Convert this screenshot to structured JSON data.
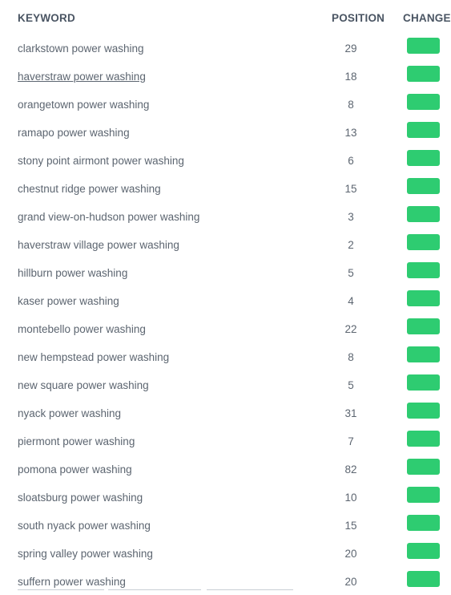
{
  "table": {
    "headers": {
      "keyword": "KEYWORD",
      "position": "POSITION",
      "change": "CHANGE"
    },
    "change_color": "#2ecc71",
    "rows": [
      {
        "keyword": "clarkstown power washing",
        "position": "29"
      },
      {
        "keyword": "haverstraw power washing",
        "position": "18"
      },
      {
        "keyword": "orangetown power washing",
        "position": "8"
      },
      {
        "keyword": "ramapo power washing",
        "position": "13"
      },
      {
        "keyword": "stony point airmont power washing",
        "position": "6"
      },
      {
        "keyword": "chestnut ridge power washing",
        "position": "15"
      },
      {
        "keyword": "grand view-on-hudson power washing",
        "position": "3"
      },
      {
        "keyword": "haverstraw village power washing",
        "position": "2"
      },
      {
        "keyword": "hillburn power washing",
        "position": "5"
      },
      {
        "keyword": "kaser power washing",
        "position": "4"
      },
      {
        "keyword": "montebello power washing",
        "position": "22"
      },
      {
        "keyword": "new hempstead power washing",
        "position": "8"
      },
      {
        "keyword": "new square power washing",
        "position": "5"
      },
      {
        "keyword": "nyack power washing",
        "position": "31"
      },
      {
        "keyword": "piermont power washing",
        "position": "7"
      },
      {
        "keyword": "pomona power washing",
        "position": "82"
      },
      {
        "keyword": "sloatsburg power washing",
        "position": "10"
      },
      {
        "keyword": "south nyack power washing",
        "position": "15"
      },
      {
        "keyword": "spring valley power washing",
        "position": "20"
      },
      {
        "keyword": "suffern power washing",
        "position": "20"
      }
    ]
  }
}
